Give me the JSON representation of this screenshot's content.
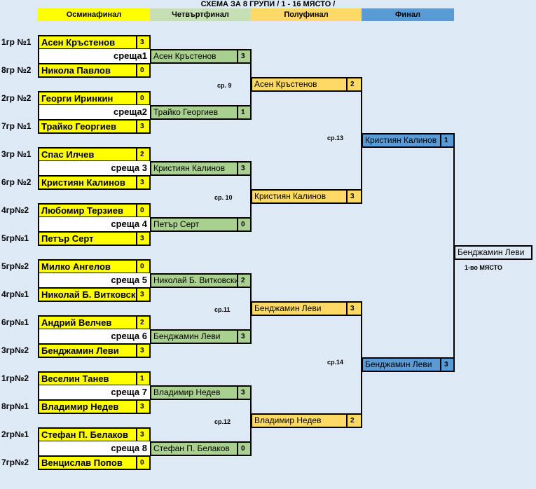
{
  "title": "СХЕМА ЗА 8 ГРУПИ   / 1 - 16  МЯСТО /",
  "headers": [
    {
      "label": "Осминафинал",
      "color": "#ffff00"
    },
    {
      "label": "Четвъртфинал",
      "color": "#c6e0b4"
    },
    {
      "label": "Полуфинал",
      "color": "#ffd966"
    },
    {
      "label": "Финал",
      "color": "#5b9bd5"
    }
  ],
  "round16": [
    {
      "match": "среща1",
      "players": [
        {
          "group": "1гр №1",
          "name": "Асен Кръстенов",
          "score": "3"
        },
        {
          "group": "8гр №2",
          "name": "Никола Павлов",
          "score": "0"
        }
      ]
    },
    {
      "match": "среща2",
      "players": [
        {
          "group": "2гр №2",
          "name": "Георги Иринкин",
          "score": "0"
        },
        {
          "group": "7гр №1",
          "name": "Трайко Георгиев",
          "score": "3"
        }
      ]
    },
    {
      "match": "среща 3",
      "players": [
        {
          "group": "3гр №1",
          "name": "Спас Илчев",
          "score": "2"
        },
        {
          "group": "6гр №2",
          "name": "Кристиян Калинов",
          "score": "3"
        }
      ]
    },
    {
      "match": "среща 4",
      "players": [
        {
          "group": "4гр№2",
          "name": "Любомир Терзиев",
          "score": "0"
        },
        {
          "group": "5гр№1",
          "name": "Петър Серт",
          "score": "3"
        }
      ]
    },
    {
      "match": "среща 5",
      "players": [
        {
          "group": "5гр№2",
          "name": "Милко Ангелов",
          "score": "0"
        },
        {
          "group": "4гр№1",
          "name": "Николай Б. Витковски",
          "score": "3"
        }
      ]
    },
    {
      "match": "среща 6",
      "players": [
        {
          "group": "6гр№1",
          "name": "Андрий Велчев",
          "score": "2"
        },
        {
          "group": "3гр№2",
          "name": "Бенджамин Леви",
          "score": "3"
        }
      ]
    },
    {
      "match": "среща 7",
      "players": [
        {
          "group": "1гр№2",
          "name": "Веселин Танев",
          "score": "1"
        },
        {
          "group": "8гр№1",
          "name": "Владимир Недев",
          "score": "3"
        }
      ]
    },
    {
      "match": "среща 8",
      "players": [
        {
          "group": "2гр№1",
          "name": "Стефан П. Белаков",
          "score": "3"
        },
        {
          "group": "7гр№2",
          "name": "Венцислав Попов",
          "score": "0"
        }
      ]
    }
  ],
  "quarterfinal": [
    {
      "name": "Асен Кръстенов",
      "score": "3"
    },
    {
      "name": "Трайко Георгиев",
      "score": "1"
    },
    {
      "name": "Кристиян Калинов",
      "score": "3"
    },
    {
      "name": "Петър Серт",
      "score": "0"
    },
    {
      "name": "Николай Б. Витковски",
      "score": "2"
    },
    {
      "name": "Бенджамин Леви",
      "score": "3"
    },
    {
      "name": "Владимир Недев",
      "score": "3"
    },
    {
      "name": "Стефан П. Белаков",
      "score": "0"
    }
  ],
  "quarter_labels": [
    "ср. 9",
    "ср. 10",
    "ср.11",
    "ср.12"
  ],
  "semifinal": [
    {
      "name": "Асен Кръстенов",
      "score": "2"
    },
    {
      "name": "Кристиян Калинов",
      "score": "3"
    },
    {
      "name": "Бенджамин Леви",
      "score": "3"
    },
    {
      "name": "Владимир Недев",
      "score": "2"
    }
  ],
  "semi_labels": [
    "ср.13",
    "ср.14"
  ],
  "final": [
    {
      "name": "Кристиян Калинов",
      "score": "1"
    },
    {
      "name": "Бенджамин Леви",
      "score": "3"
    }
  ],
  "champion": {
    "name": "Бенджамин Леви",
    "label": "1-во МЯСТО"
  }
}
